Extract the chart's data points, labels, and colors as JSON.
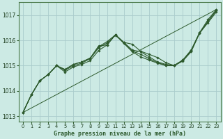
{
  "title": "Graphe pression niveau de la mer (hPa)",
  "bg_color": "#cceae4",
  "grid_color": "#aacccc",
  "line_color": "#2d5a2d",
  "marker_color": "#2d5a2d",
  "xlim": [
    -0.5,
    23.5
  ],
  "ylim": [
    1012.8,
    1017.5
  ],
  "yticks": [
    1013,
    1014,
    1015,
    1016,
    1017
  ],
  "xticks": [
    0,
    1,
    2,
    3,
    4,
    5,
    6,
    7,
    8,
    9,
    10,
    11,
    12,
    13,
    14,
    15,
    16,
    17,
    18,
    19,
    20,
    21,
    22,
    23
  ],
  "series": [
    [
      1013.15,
      1013.85,
      1014.4,
      1014.65,
      1015.0,
      1014.85,
      1015.05,
      1015.15,
      1015.3,
      1015.78,
      1015.82,
      1016.22,
      1015.92,
      1015.85,
      1015.57,
      1015.45,
      1015.32,
      1015.12,
      1015.0,
      1015.22,
      1015.62,
      1016.3,
      1016.82,
      1017.22
    ],
    [
      1013.15,
      1013.85,
      1014.4,
      1014.65,
      1015.0,
      1014.75,
      1014.95,
      1015.05,
      1015.2,
      1015.6,
      1015.82,
      1016.22,
      1015.88,
      1015.55,
      1015.35,
      1015.22,
      1015.1,
      1015.0,
      1015.0,
      1015.18,
      1015.55,
      1016.28,
      1016.7,
      1017.12
    ],
    [
      1013.15,
      1013.85,
      1014.4,
      1014.65,
      1015.0,
      1014.85,
      1015.05,
      1015.15,
      1015.3,
      1015.75,
      1015.95,
      1016.22,
      1015.92,
      1015.62,
      1015.55,
      1015.35,
      1015.15,
      1015.05,
      1015.02,
      1015.22,
      1015.58,
      1016.3,
      1016.75,
      1017.2
    ],
    [
      1013.15,
      1013.85,
      1014.4,
      1014.65,
      1015.0,
      1014.82,
      1015.0,
      1015.1,
      1015.28,
      1015.7,
      1015.9,
      1016.2,
      1015.9,
      1015.58,
      1015.45,
      1015.28,
      1015.12,
      1015.02,
      1015.0,
      1015.2,
      1015.6,
      1016.3,
      1016.75,
      1017.18
    ]
  ],
  "series_straight": [
    [
      1013.15,
      23,
      1017.22
    ]
  ]
}
